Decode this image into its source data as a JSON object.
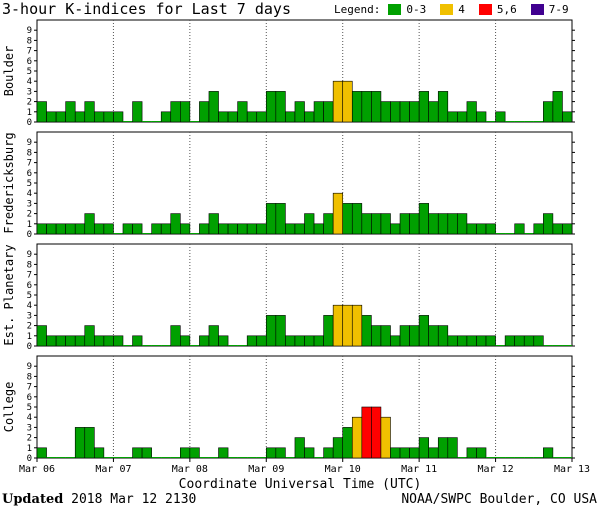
{
  "title": "3-hour K-indices for Last 7 days",
  "legend": {
    "label": "Legend:",
    "items": [
      {
        "label": "0-3",
        "color": "#00a000"
      },
      {
        "label": "4",
        "color": "#f0c000"
      },
      {
        "label": "5,6",
        "color": "#ff0000"
      },
      {
        "label": "7-9",
        "color": "#400090"
      }
    ]
  },
  "footer": {
    "updated_label": "Updated",
    "updated_value": "2018 Mar 12 2130",
    "source": "NOAA/SWPC Boulder, CO USA"
  },
  "chart_data": {
    "type": "bar",
    "xlabel": "Coordinate Universal Time (UTC)",
    "x_ticks": [
      "Mar 06",
      "Mar 07",
      "Mar 08",
      "Mar 09",
      "Mar 10",
      "Mar 11",
      "Mar 12",
      "Mar 13"
    ],
    "ylim": [
      0,
      9
    ],
    "y_ticks": [
      0,
      1,
      2,
      3,
      4,
      5,
      6,
      7,
      8,
      9
    ],
    "intervals_per_day": 8,
    "color_scale": [
      {
        "range": [
          0,
          3
        ],
        "color": "#00a000"
      },
      {
        "range": [
          4,
          4
        ],
        "color": "#f0c000"
      },
      {
        "range": [
          5,
          6
        ],
        "color": "#ff0000"
      },
      {
        "range": [
          7,
          9
        ],
        "color": "#400090"
      }
    ],
    "panels": [
      {
        "name": "Boulder",
        "values": [
          2,
          1,
          1,
          2,
          1,
          2,
          1,
          1,
          1,
          0,
          2,
          0,
          0,
          1,
          2,
          2,
          0,
          2,
          3,
          1,
          1,
          2,
          1,
          1,
          3,
          3,
          1,
          2,
          1,
          2,
          2,
          4,
          4,
          3,
          3,
          3,
          2,
          2,
          2,
          2,
          3,
          2,
          3,
          1,
          1,
          2,
          1,
          0,
          1,
          0,
          0,
          0,
          0,
          2,
          3,
          1
        ]
      },
      {
        "name": "Fredericksburg",
        "values": [
          1,
          1,
          1,
          1,
          1,
          2,
          1,
          1,
          0,
          1,
          1,
          0,
          1,
          1,
          2,
          1,
          0,
          1,
          2,
          1,
          1,
          1,
          1,
          1,
          3,
          3,
          1,
          1,
          2,
          1,
          2,
          4,
          3,
          3,
          2,
          2,
          2,
          1,
          2,
          2,
          3,
          2,
          2,
          2,
          2,
          1,
          1,
          1,
          0,
          0,
          1,
          0,
          1,
          2,
          1,
          1
        ]
      },
      {
        "name": "Est. Planetary",
        "values": [
          2,
          1,
          1,
          1,
          1,
          2,
          1,
          1,
          1,
          0,
          1,
          0,
          0,
          0,
          2,
          1,
          0,
          1,
          2,
          1,
          0,
          0,
          1,
          1,
          3,
          3,
          1,
          1,
          1,
          1,
          3,
          4,
          4,
          4,
          3,
          2,
          2,
          1,
          2,
          2,
          3,
          2,
          2,
          1,
          1,
          1,
          1,
          1,
          0,
          1,
          1,
          1,
          1,
          0,
          0,
          0
        ]
      },
      {
        "name": "College",
        "values": [
          1,
          0,
          0,
          0,
          3,
          3,
          1,
          0,
          0,
          0,
          1,
          1,
          0,
          0,
          0,
          1,
          1,
          0,
          0,
          1,
          0,
          0,
          0,
          0,
          1,
          1,
          0,
          2,
          1,
          0,
          1,
          2,
          3,
          4,
          5,
          5,
          4,
          1,
          1,
          1,
          2,
          1,
          2,
          2,
          0,
          1,
          1,
          0,
          0,
          0,
          0,
          0,
          0,
          1,
          0,
          0
        ]
      }
    ]
  }
}
